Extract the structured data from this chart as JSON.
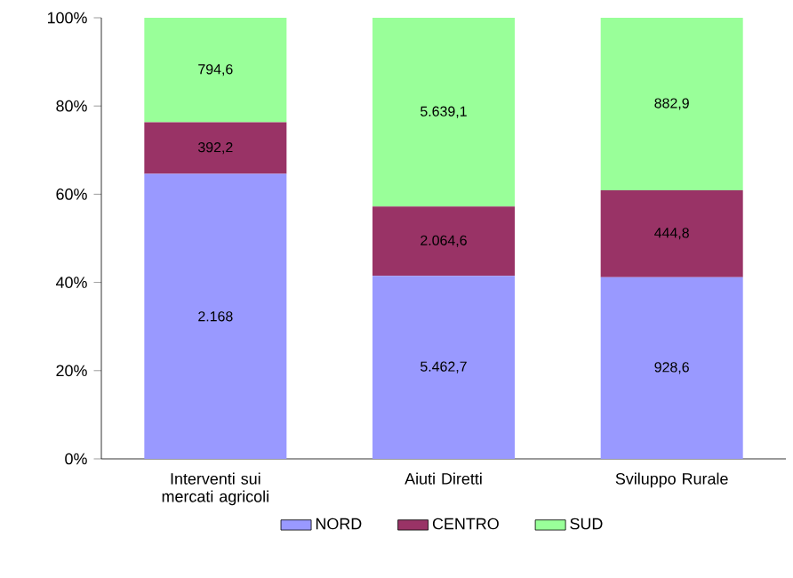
{
  "chart_data": {
    "type": "bar",
    "stacked": true,
    "categories": [
      "Interventi sui mercati agricoli",
      "Aiuti Diretti",
      "Sviluppo Rurale"
    ],
    "series": [
      {
        "name": "NORD",
        "color": "#9999ff",
        "values": [
          64.6,
          41.5,
          41.2
        ]
      },
      {
        "name": "CENTRO",
        "color": "#993366",
        "values": [
          11.7,
          15.7,
          19.7
        ]
      },
      {
        "name": "SUD",
        "color": "#99ff99",
        "values": [
          23.7,
          42.8,
          39.1
        ]
      }
    ],
    "annotations": [
      "2.168",
      "5.462,7",
      "928,6",
      "392,2",
      "2.064,6",
      "444,8",
      "794,6",
      "5.639,1",
      "882,9"
    ],
    "ylim": [
      0,
      100
    ],
    "yticks": [
      {
        "value": 0,
        "label": "0%"
      },
      {
        "value": 20,
        "label": "20%"
      },
      {
        "value": 40,
        "label": "40%"
      },
      {
        "value": 60,
        "label": "60%"
      },
      {
        "value": 80,
        "label": "80%"
      },
      {
        "value": 100,
        "label": "100%"
      }
    ],
    "legend": "bottom"
  }
}
